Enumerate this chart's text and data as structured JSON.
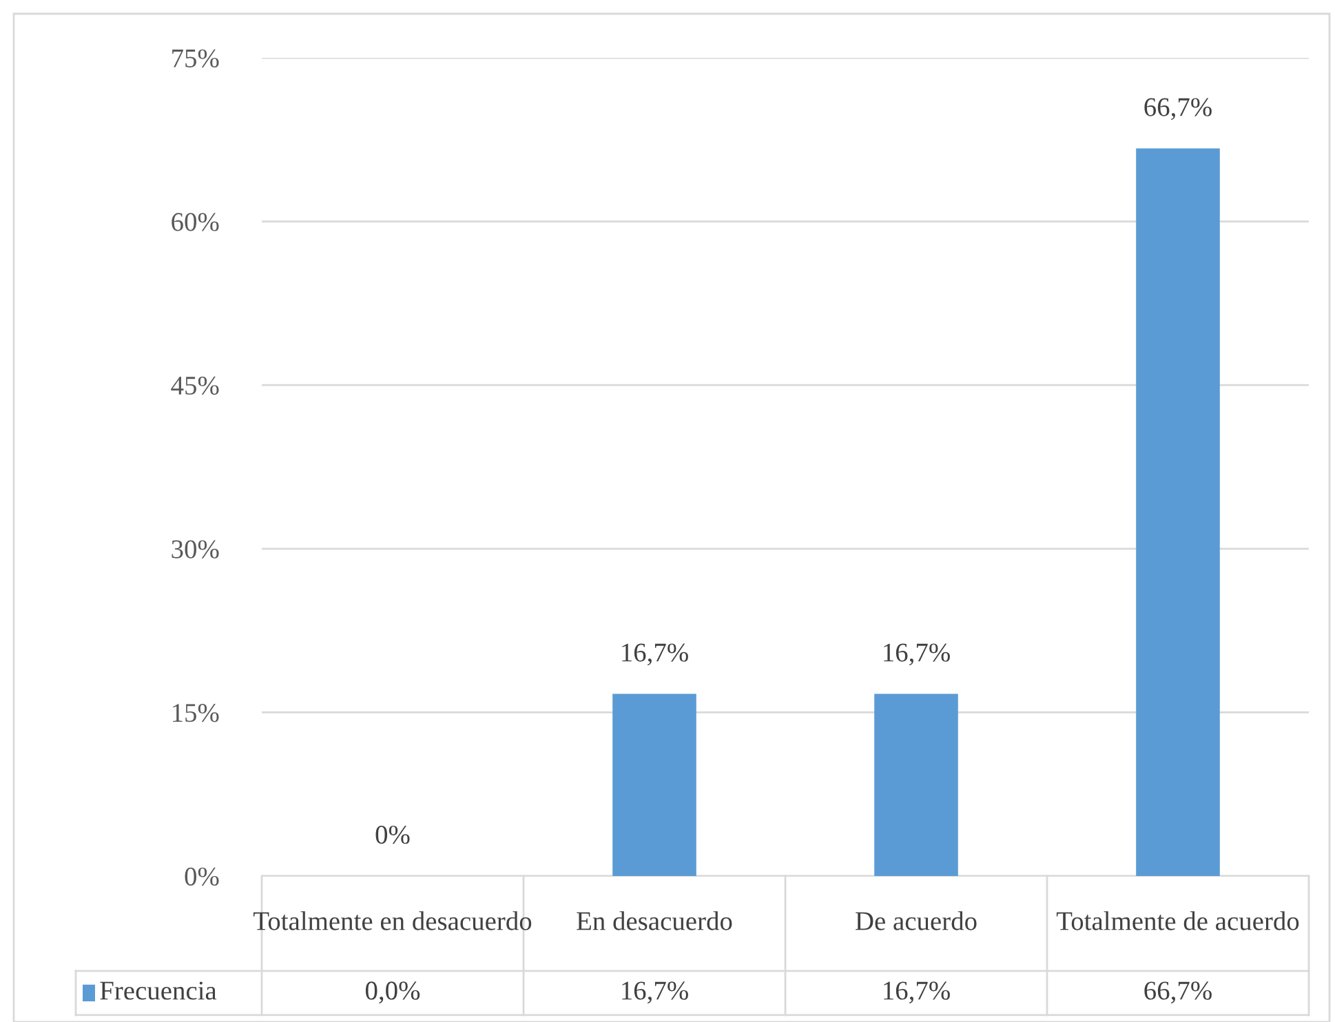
{
  "chart_data": {
    "type": "bar",
    "categories": [
      "Totalmente en desacuerdo",
      "En desacuerdo",
      "De acuerdo",
      "Totalmente de acuerdo"
    ],
    "series": [
      {
        "name": "Frecuencia",
        "color": "#5b9bd5",
        "values": [
          0,
          16.7,
          16.7,
          66.7
        ],
        "value_labels": [
          "0%",
          "16,7%",
          "16,7%",
          "66,7%"
        ]
      }
    ],
    "annotations": [
      "0,0%",
      "16,7%",
      "16,7%",
      "66,7%"
    ],
    "ylim": [
      0,
      75
    ],
    "yticks": [
      {
        "value": 0,
        "label": "0%"
      },
      {
        "value": 15,
        "label": "15%"
      },
      {
        "value": 30,
        "label": "30%"
      },
      {
        "value": 45,
        "label": "45%"
      },
      {
        "value": 60,
        "label": "60%"
      },
      {
        "value": 75,
        "label": "75%"
      }
    ],
    "grid": "y",
    "legend": "bottom"
  }
}
